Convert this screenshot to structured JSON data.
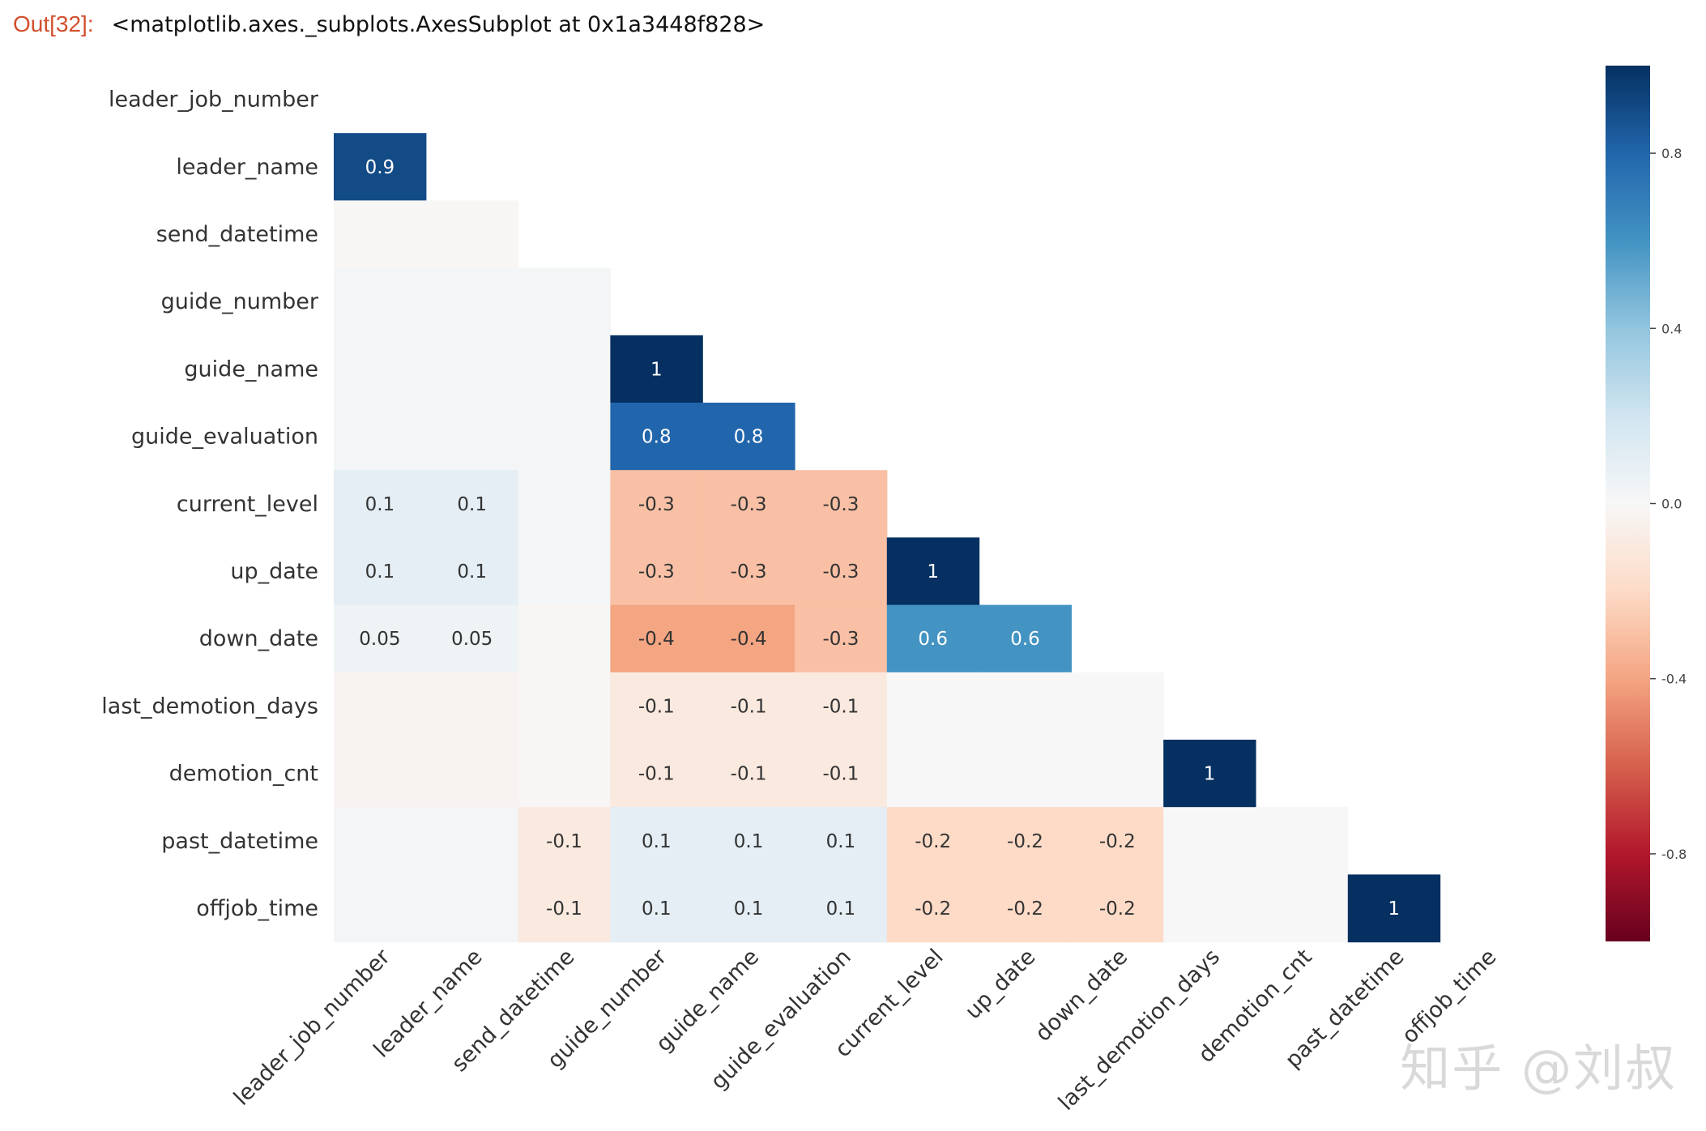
{
  "cell_output": {
    "prompt": "Out[32]:",
    "repr": "<matplotlib.axes._subplots.AxesSubplot at 0x1a3448f828>"
  },
  "watermark": "知乎 @刘叔",
  "chart_data": {
    "type": "heatmap",
    "title": "",
    "xlabel": "",
    "ylabel": "",
    "mask": "upper-triangle including diagonal",
    "rows": [
      "leader_job_number",
      "leader_name",
      "send_datetime",
      "guide_number",
      "guide_name",
      "guide_evaluation",
      "current_level",
      "up_date",
      "down_date",
      "last_demotion_days",
      "demotion_cnt",
      "past_datetime",
      "offjob_time"
    ],
    "columns": [
      "leader_job_number",
      "leader_name",
      "send_datetime",
      "guide_number",
      "guide_name",
      "guide_evaluation",
      "current_level",
      "up_date",
      "down_date",
      "last_demotion_days",
      "demotion_cnt",
      "past_datetime",
      "offjob_time"
    ],
    "values": [
      [
        null,
        null,
        null,
        null,
        null,
        null,
        null,
        null,
        null,
        null,
        null,
        null,
        null
      ],
      [
        0.9,
        null,
        null,
        null,
        null,
        null,
        null,
        null,
        null,
        null,
        null,
        null,
        null
      ],
      [
        -0.01,
        -0.01,
        null,
        null,
        null,
        null,
        null,
        null,
        null,
        null,
        null,
        null,
        null
      ],
      [
        0.02,
        0.02,
        0.02,
        null,
        null,
        null,
        null,
        null,
        null,
        null,
        null,
        null,
        null
      ],
      [
        0.02,
        0.02,
        0.02,
        1,
        null,
        null,
        null,
        null,
        null,
        null,
        null,
        null,
        null
      ],
      [
        0.02,
        0.02,
        0.02,
        0.8,
        0.8,
        null,
        null,
        null,
        null,
        null,
        null,
        null,
        null
      ],
      [
        0.1,
        0.1,
        0.02,
        -0.3,
        -0.3,
        -0.3,
        null,
        null,
        null,
        null,
        null,
        null,
        null
      ],
      [
        0.1,
        0.1,
        0.02,
        -0.3,
        -0.3,
        -0.3,
        1,
        null,
        null,
        null,
        null,
        null,
        null
      ],
      [
        0.05,
        0.05,
        -0.01,
        -0.4,
        -0.4,
        -0.3,
        0.6,
        0.6,
        null,
        null,
        null,
        null,
        null
      ],
      [
        -0.03,
        -0.03,
        -0.01,
        -0.1,
        -0.1,
        -0.1,
        0.0,
        0.0,
        0.0,
        null,
        null,
        null,
        null
      ],
      [
        -0.03,
        -0.03,
        -0.01,
        -0.1,
        -0.1,
        -0.1,
        0.0,
        0.0,
        0.0,
        1,
        null,
        null,
        null
      ],
      [
        0.02,
        0.02,
        -0.1,
        0.1,
        0.1,
        0.1,
        -0.2,
        -0.2,
        -0.2,
        0.0,
        0.0,
        null,
        null
      ],
      [
        0.02,
        0.02,
        -0.1,
        0.1,
        0.1,
        0.1,
        -0.2,
        -0.2,
        -0.2,
        0.0,
        0.0,
        1,
        null
      ]
    ],
    "colormap": "RdBu",
    "vmin": -1,
    "vmax": 1,
    "colorbar_ticks": [
      "0.8",
      "0.4",
      "0.0",
      "-0.4",
      "-0.8"
    ],
    "colorbar_tick_values": [
      0.8,
      0.4,
      0.0,
      -0.4,
      -0.8
    ],
    "annotate_threshold": 0.05
  }
}
